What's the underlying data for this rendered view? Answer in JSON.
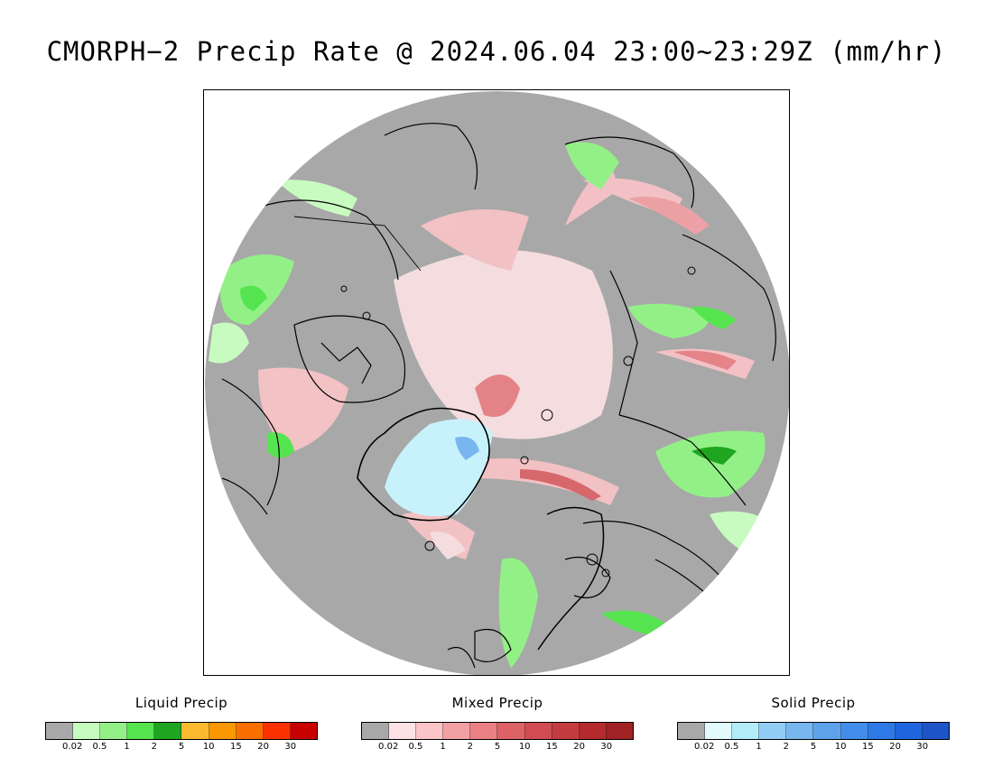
{
  "title": "CMORPH−2 Precip Rate @ 2024.06.04 23:00~23:29Z (mm/hr)",
  "legends": [
    {
      "key": "liquid",
      "title": "Liquid Precip",
      "colors": [
        "#a8a8a8",
        "#c8fbc0",
        "#93f087",
        "#55e44f",
        "#1fa51f",
        "#fbb930",
        "#fb9700",
        "#fb6f00",
        "#fb3100",
        "#c80000"
      ],
      "ticks": [
        "0.02",
        "0.5",
        "1",
        "2",
        "5",
        "10",
        "15",
        "20",
        "30"
      ]
    },
    {
      "key": "mixed",
      "title": "Mixed Precip",
      "colors": [
        "#a8a8a8",
        "#fde2e5",
        "#fbc4c8",
        "#f2a0a4",
        "#ea8084",
        "#dc6266",
        "#d04c50",
        "#c53c40",
        "#b52b2d",
        "#a12225"
      ],
      "ticks": [
        "0.02",
        "0.5",
        "1",
        "2",
        "5",
        "10",
        "15",
        "20",
        "30"
      ]
    },
    {
      "key": "solid",
      "title": "Solid Precip",
      "colors": [
        "#a8a8a8",
        "#e4fbfe",
        "#b2ecf9",
        "#92cdf6",
        "#78b6f0",
        "#5ea2ec",
        "#438dea",
        "#2d7ae6",
        "#1f66de",
        "#1e54c8"
      ],
      "ticks": [
        "0.02",
        "0.5",
        "1",
        "2",
        "5",
        "10",
        "15",
        "20",
        "30"
      ]
    }
  ],
  "map": {
    "projection": "north-polar-stereographic",
    "background_color": "#a8a8a8",
    "coastline_color": "#000000",
    "regions": [
      "arctic-ocean",
      "greenland",
      "scandinavia",
      "siberia",
      "canadian-archipelago",
      "alaska"
    ]
  }
}
